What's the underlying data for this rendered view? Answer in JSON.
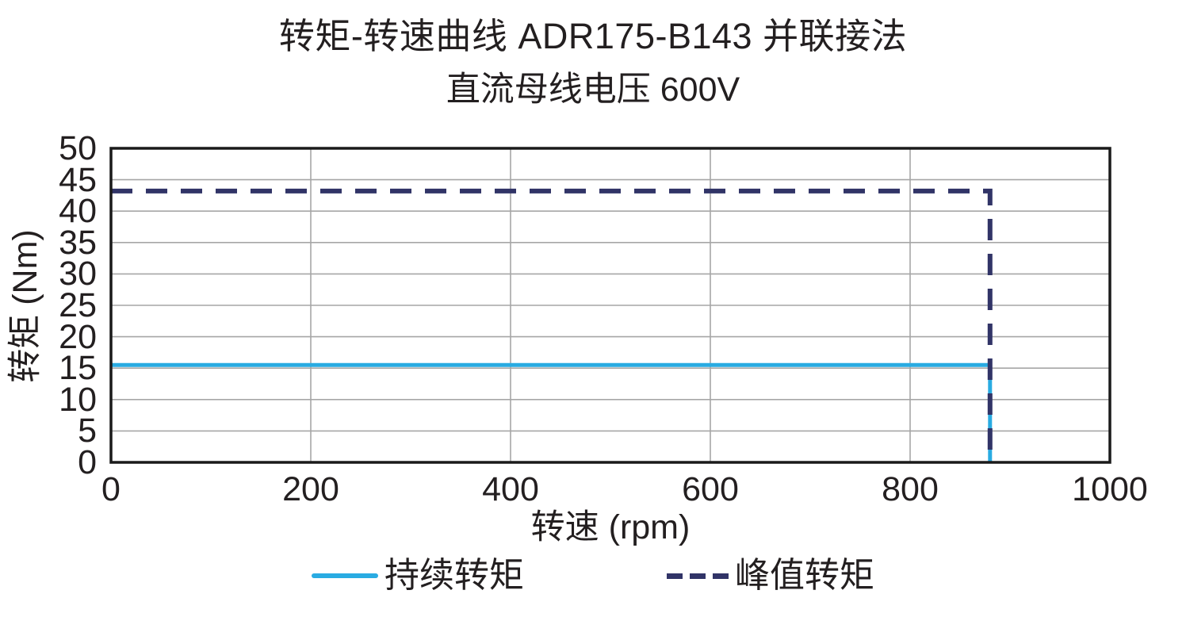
{
  "chart_data": {
    "type": "line",
    "title": "转矩-转速曲线 ADR175-B143 并联接法",
    "subtitle": "直流母线电压 600V",
    "xlabel": "转速 (rpm)",
    "ylabel": "转矩 (Nm)",
    "xlim": [
      0,
      1000
    ],
    "ylim": [
      0,
      50
    ],
    "x_ticks": [
      0,
      200,
      400,
      600,
      800,
      1000
    ],
    "y_ticks": [
      0,
      5,
      10,
      15,
      20,
      25,
      30,
      35,
      40,
      45,
      50
    ],
    "grid": true,
    "legend_position": "bottom",
    "series": [
      {
        "name": "持续转矩",
        "style": "solid",
        "color": "#29ABE2",
        "points": [
          [
            0,
            15.5
          ],
          [
            880,
            15.5
          ],
          [
            880,
            0
          ]
        ]
      },
      {
        "name": "峰值转矩",
        "style": "dashed",
        "color": "#313467",
        "points": [
          [
            0,
            43.2
          ],
          [
            880,
            43.2
          ],
          [
            880,
            0
          ]
        ]
      }
    ]
  },
  "colors": {
    "grid": "#A6A6A6",
    "frame": "#1A1A1A",
    "text": "#231F20"
  }
}
